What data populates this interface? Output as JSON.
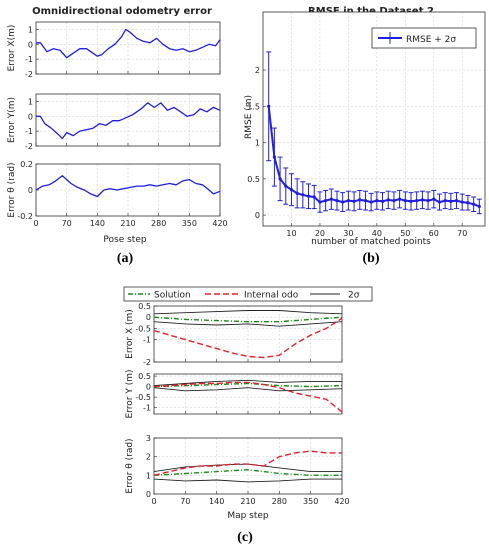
{
  "captions": {
    "a": "(a)",
    "b": "(b)",
    "c": "(c)"
  },
  "colors": {
    "blue": "#1f1fe0",
    "green": "#1a8a1a",
    "red": "#e8202a",
    "black": "#222222",
    "grid": "#d6d6d6"
  },
  "panel_a": {
    "title": "Omnidirectional odometry error",
    "xlabel": "Pose step",
    "xticks": [
      "0",
      "70",
      "140",
      "210",
      "280",
      "350",
      "420"
    ],
    "subplots": [
      {
        "ylabel": "Error X(m)",
        "yticks": [
          "-2",
          "-1",
          "0",
          "1"
        ]
      },
      {
        "ylabel": "Error Y(m)",
        "yticks": [
          "-2",
          "-1",
          "0",
          "1"
        ]
      },
      {
        "ylabel": "Error θ (rad)",
        "yticks": [
          "-0.2",
          "0",
          "0.2"
        ]
      }
    ]
  },
  "panel_b": {
    "title": "RMSE in the Dataset 2",
    "xlabel": "number of matched points",
    "ylabel": "RMSE (m)",
    "xticks": [
      "10",
      "20",
      "30",
      "40",
      "50",
      "60",
      "70"
    ],
    "yticks": [
      "0",
      "0.5",
      "1",
      "1.5",
      "2"
    ],
    "legend": "RMSE + 2σ"
  },
  "panel_c": {
    "xlabel": "Map step",
    "xticks": [
      "0",
      "70",
      "140",
      "210",
      "280",
      "350",
      "420"
    ],
    "legend": [
      "Solution",
      "Internal odo",
      "2σ"
    ],
    "subplots": [
      {
        "ylabel": "Error X (m)",
        "yticks": [
          "-2",
          "-1",
          "-0.5",
          "0",
          "0.5"
        ]
      },
      {
        "ylabel": "Error Y (m)",
        "yticks": [
          "-1",
          "-0.5",
          "0",
          "0.5"
        ]
      },
      {
        "ylabel": "Error θ (rad)",
        "yticks": [
          "0",
          "1",
          "2",
          "3"
        ]
      }
    ]
  },
  "chart_data": [
    {
      "type": "line",
      "title": "Omnidirectional odometry error",
      "xlabel": "Pose step",
      "ylabel": "Error X(m)",
      "xlim": [
        0,
        420
      ],
      "ylim": [
        -2,
        1.5
      ],
      "grid": true,
      "series": [
        {
          "x": [
            0,
            10,
            25,
            40,
            55,
            70,
            85,
            100,
            115,
            130,
            140,
            150,
            165,
            180,
            195,
            205,
            215,
            230,
            245,
            260,
            275,
            290,
            305,
            320,
            335,
            350,
            365,
            380,
            395,
            410,
            420
          ],
          "values": [
            0.1,
            0.1,
            -0.5,
            -0.3,
            -0.4,
            -0.9,
            -0.6,
            -0.3,
            -0.3,
            -0.6,
            -0.8,
            -0.7,
            -0.3,
            0.0,
            0.5,
            1.0,
            0.8,
            0.4,
            0.2,
            0.1,
            0.4,
            0.0,
            -0.3,
            -0.4,
            -0.3,
            -0.5,
            -0.4,
            -0.2,
            0.0,
            -0.1,
            0.3
          ]
        }
      ]
    },
    {
      "type": "line",
      "ylabel": "Error Y(m)",
      "xlim": [
        0,
        420
      ],
      "ylim": [
        -2,
        1.5
      ],
      "grid": true,
      "series": [
        {
          "x": [
            0,
            10,
            20,
            35,
            50,
            60,
            70,
            85,
            100,
            115,
            130,
            145,
            160,
            175,
            190,
            205,
            220,
            240,
            255,
            270,
            285,
            300,
            315,
            330,
            345,
            360,
            375,
            390,
            405,
            420
          ],
          "values": [
            0.0,
            0.0,
            -0.5,
            -0.8,
            -1.2,
            -1.5,
            -1.1,
            -1.3,
            -1.0,
            -0.9,
            -0.8,
            -0.5,
            -0.6,
            -0.3,
            -0.3,
            -0.1,
            0.1,
            0.5,
            0.9,
            0.6,
            0.9,
            0.4,
            0.6,
            0.3,
            0.0,
            0.1,
            0.5,
            0.3,
            0.6,
            0.4
          ]
        }
      ]
    },
    {
      "type": "line",
      "ylabel": "Error θ (rad)",
      "xlabel": "Pose step",
      "xlim": [
        0,
        420
      ],
      "ylim": [
        -0.2,
        0.2
      ],
      "grid": true,
      "series": [
        {
          "x": [
            0,
            15,
            30,
            45,
            60,
            70,
            80,
            95,
            110,
            125,
            140,
            155,
            170,
            185,
            200,
            215,
            230,
            245,
            260,
            275,
            290,
            305,
            320,
            335,
            350,
            365,
            380,
            395,
            405,
            420
          ],
          "values": [
            0.0,
            0.03,
            0.04,
            0.07,
            0.11,
            0.08,
            0.05,
            0.02,
            0.0,
            -0.03,
            -0.05,
            0.0,
            0.01,
            0.0,
            0.01,
            0.02,
            0.03,
            0.03,
            0.04,
            0.03,
            0.04,
            0.05,
            0.04,
            0.07,
            0.08,
            0.05,
            0.04,
            0.0,
            -0.03,
            -0.01
          ]
        }
      ]
    },
    {
      "type": "line",
      "title": "RMSE in the Dataset 2",
      "xlabel": "number of matched points",
      "ylabel": "RMSE (m)",
      "xlim": [
        0,
        78
      ],
      "ylim": [
        -0.15,
        2.8
      ],
      "grid": true,
      "legend": "top-right",
      "series": [
        {
          "name": "RMSE + 2σ",
          "x": [
            2,
            4,
            6,
            8,
            10,
            12,
            14,
            16,
            18,
            20,
            22,
            24,
            26,
            28,
            30,
            32,
            34,
            36,
            38,
            40,
            42,
            44,
            46,
            48,
            50,
            52,
            54,
            56,
            58,
            60,
            62,
            64,
            66,
            68,
            70,
            72,
            74,
            76
          ],
          "values": [
            1.5,
            0.8,
            0.5,
            0.4,
            0.35,
            0.3,
            0.28,
            0.26,
            0.25,
            0.18,
            0.2,
            0.22,
            0.2,
            0.18,
            0.2,
            0.19,
            0.21,
            0.2,
            0.18,
            0.2,
            0.19,
            0.21,
            0.2,
            0.22,
            0.2,
            0.19,
            0.2,
            0.21,
            0.2,
            0.22,
            0.18,
            0.2,
            0.19,
            0.2,
            0.18,
            0.17,
            0.15,
            0.12
          ],
          "error": [
            0.75,
            0.4,
            0.3,
            0.25,
            0.22,
            0.2,
            0.18,
            0.17,
            0.16,
            0.14,
            0.14,
            0.14,
            0.13,
            0.13,
            0.13,
            0.13,
            0.13,
            0.13,
            0.12,
            0.12,
            0.12,
            0.12,
            0.12,
            0.12,
            0.12,
            0.12,
            0.12,
            0.12,
            0.12,
            0.12,
            0.11,
            0.11,
            0.11,
            0.11,
            0.11,
            0.1,
            0.1,
            0.1
          ]
        }
      ]
    },
    {
      "type": "line",
      "ylabel": "Error X (m)",
      "xlim": [
        0,
        420
      ],
      "ylim": [
        -2,
        0.5
      ],
      "grid": true,
      "legend": "top",
      "series": [
        {
          "name": "Solution",
          "x": [
            0,
            70,
            140,
            210,
            280,
            350,
            420
          ],
          "values": [
            0.0,
            -0.1,
            -0.15,
            -0.2,
            -0.2,
            -0.1,
            0.0
          ]
        },
        {
          "name": "Internal odo",
          "x": [
            0,
            35,
            70,
            105,
            140,
            175,
            210,
            245,
            280,
            315,
            350,
            385,
            420
          ],
          "values": [
            -0.6,
            -0.8,
            -1.0,
            -1.2,
            -1.4,
            -1.6,
            -1.75,
            -1.8,
            -1.7,
            -1.2,
            -0.8,
            -0.5,
            -0.05
          ]
        },
        {
          "name": "2σ",
          "x": [
            0,
            70,
            140,
            210,
            280,
            350,
            420
          ],
          "values": [
            0.15,
            0.2,
            0.25,
            0.3,
            0.3,
            0.2,
            0.15
          ]
        },
        {
          "name": "",
          "x": [
            0,
            70,
            140,
            210,
            280,
            350,
            420
          ],
          "values": [
            -0.2,
            -0.3,
            -0.35,
            -0.3,
            -0.4,
            -0.3,
            -0.2
          ]
        }
      ]
    },
    {
      "type": "line",
      "ylabel": "Error Y (m)",
      "xlim": [
        0,
        420
      ],
      "ylim": [
        -1.3,
        0.6
      ],
      "grid": true,
      "series": [
        {
          "name": "Solution",
          "x": [
            0,
            70,
            140,
            210,
            280,
            350,
            420
          ],
          "values": [
            0.0,
            0.05,
            0.1,
            0.15,
            0.05,
            0.0,
            0.05
          ]
        },
        {
          "name": "Internal odo",
          "x": [
            0,
            35,
            70,
            105,
            140,
            175,
            210,
            245,
            280,
            315,
            350,
            385,
            420
          ],
          "values": [
            0.0,
            0.05,
            0.1,
            0.15,
            0.15,
            0.2,
            0.2,
            0.1,
            -0.05,
            -0.3,
            -0.45,
            -0.6,
            -1.2
          ]
        },
        {
          "name": "2σ",
          "x": [
            0,
            70,
            140,
            210,
            280,
            350,
            420
          ],
          "values": [
            0.05,
            0.15,
            0.25,
            0.3,
            0.2,
            0.25,
            0.25
          ]
        },
        {
          "name": "",
          "x": [
            0,
            70,
            140,
            210,
            280,
            350,
            420
          ],
          "values": [
            -0.05,
            -0.2,
            -0.15,
            -0.05,
            -0.2,
            -0.15,
            -0.1
          ]
        }
      ]
    },
    {
      "type": "line",
      "ylabel": "Error θ (rad)",
      "xlabel": "Map step",
      "xlim": [
        0,
        420
      ],
      "ylim": [
        0,
        3
      ],
      "grid": true,
      "series": [
        {
          "name": "Solution",
          "x": [
            0,
            70,
            140,
            210,
            280,
            350,
            420
          ],
          "values": [
            1.0,
            1.1,
            1.2,
            1.3,
            1.1,
            1.0,
            1.0
          ]
        },
        {
          "name": "Internal odo",
          "x": [
            0,
            35,
            70,
            105,
            140,
            175,
            210,
            245,
            280,
            315,
            350,
            385,
            420
          ],
          "values": [
            1.0,
            1.2,
            1.4,
            1.5,
            1.5,
            1.6,
            1.6,
            1.5,
            2.0,
            2.2,
            2.3,
            2.2,
            2.2
          ]
        },
        {
          "name": "2σ",
          "x": [
            0,
            70,
            140,
            210,
            280,
            350,
            420
          ],
          "values": [
            1.2,
            1.45,
            1.55,
            1.6,
            1.4,
            1.2,
            1.2
          ]
        },
        {
          "name": "",
          "x": [
            0,
            70,
            140,
            210,
            280,
            350,
            420
          ],
          "values": [
            0.8,
            0.7,
            0.75,
            0.65,
            0.7,
            0.8,
            0.8
          ]
        }
      ]
    }
  ]
}
